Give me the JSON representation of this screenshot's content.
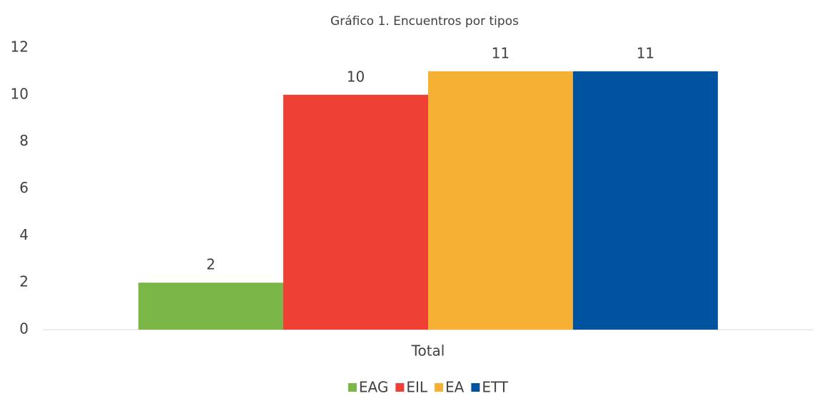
{
  "chart_data": {
    "type": "bar",
    "title": "Gráfico 1. Encuentros por tipos",
    "categories": [
      "Total"
    ],
    "series": [
      {
        "name": "EAG",
        "color": "#7ab648",
        "values": [
          2
        ]
      },
      {
        "name": "EIL",
        "color": "#ee4035",
        "values": [
          10
        ]
      },
      {
        "name": "EA",
        "color": "#f6b135",
        "values": [
          11
        ]
      },
      {
        "name": "ETT",
        "color": "#00549f",
        "values": [
          11
        ]
      }
    ],
    "ylim": [
      0,
      12
    ],
    "yticks": [
      0,
      2,
      4,
      6,
      8,
      10,
      12
    ],
    "grid": false,
    "legend": "bottom",
    "data_labels": true
  }
}
